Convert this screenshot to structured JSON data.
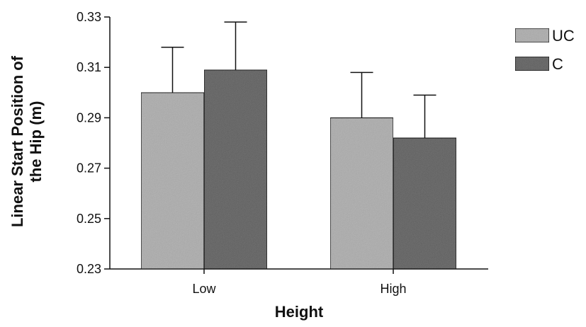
{
  "chart_data": {
    "type": "bar",
    "title": "",
    "xlabel": "Height",
    "ylabel_line1": "Linear Start Position of",
    "ylabel_line2": "the Hip (m)",
    "categories": [
      "Low",
      "High"
    ],
    "ylim": [
      0.23,
      0.33
    ],
    "yticks": [
      "0.23",
      "0.25",
      "0.27",
      "0.29",
      "0.31",
      "0.33"
    ],
    "series": [
      {
        "name": "UC",
        "values": [
          0.3,
          0.29
        ],
        "errors": [
          0.018,
          0.018
        ],
        "color": "#bdbdbd"
      },
      {
        "name": "C",
        "values": [
          0.309,
          0.282
        ],
        "errors": [
          0.019,
          0.017
        ],
        "color": "#7a7a7a"
      }
    ],
    "legend_position": "top-right",
    "grid": false
  }
}
